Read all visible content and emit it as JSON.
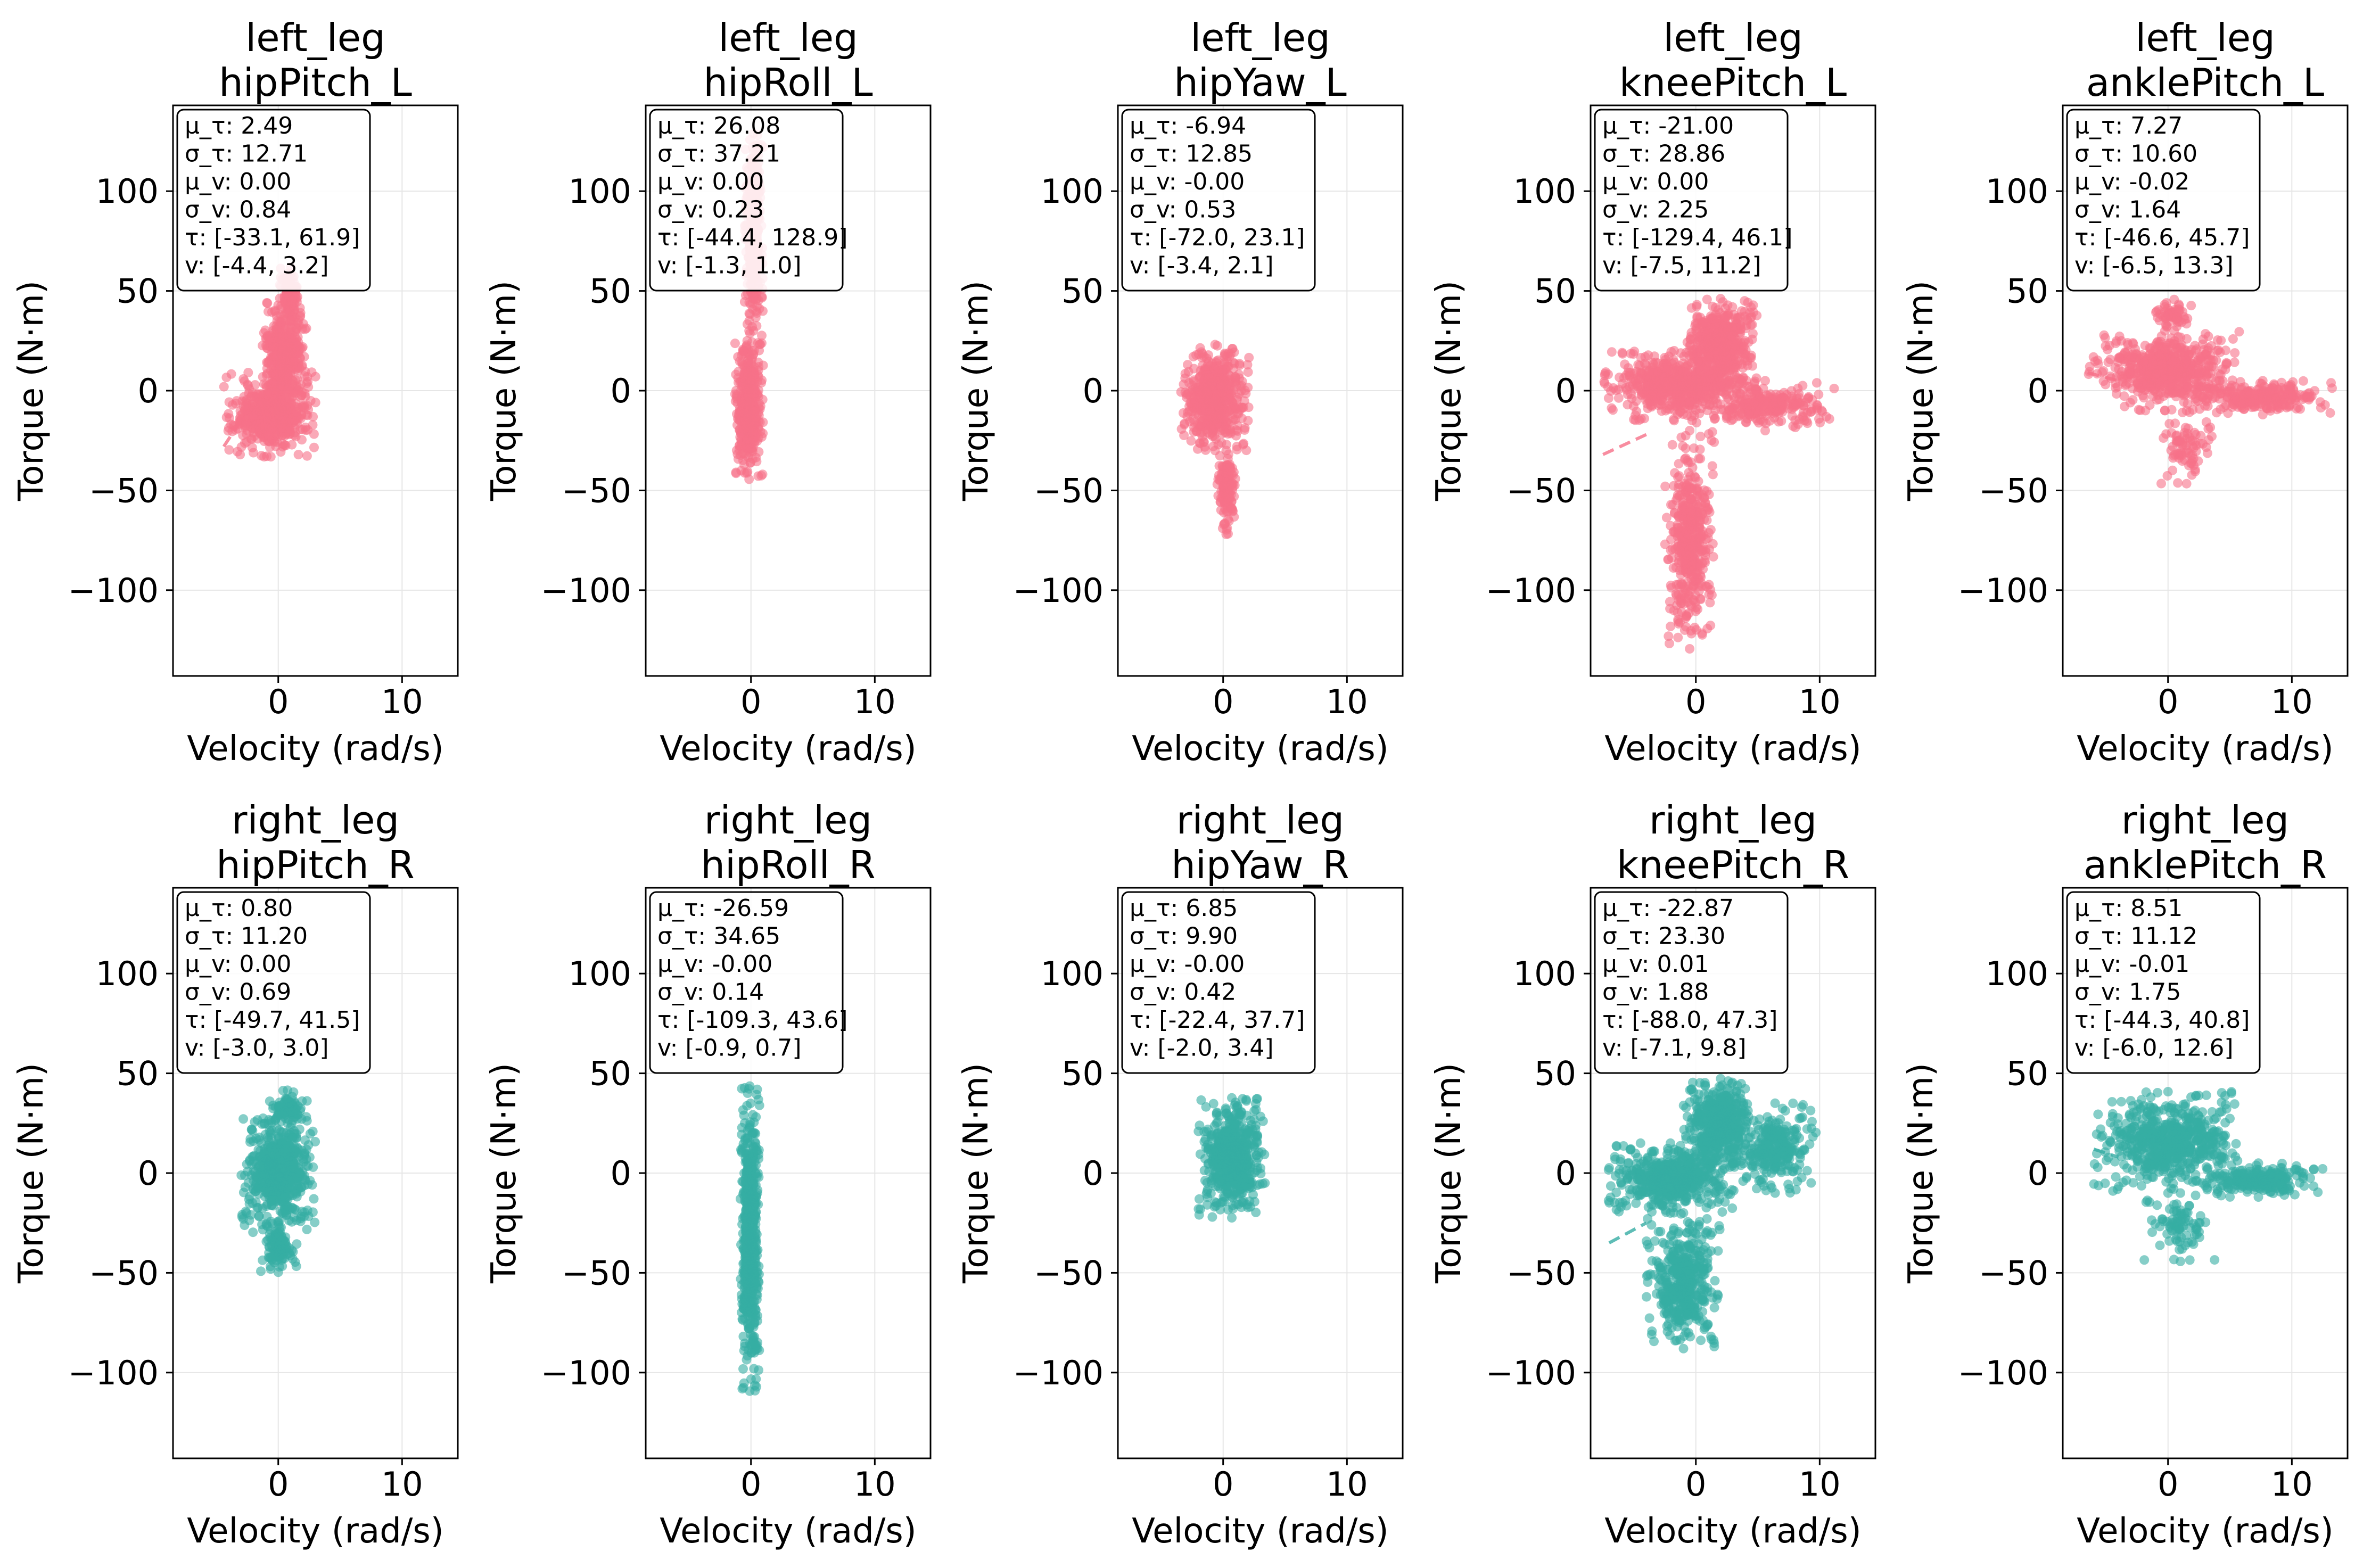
{
  "chart_data": [
    {
      "type": "scatter",
      "group": "left_leg",
      "joint": "hipPitch_L",
      "title": [
        "left_leg",
        "hipPitch_L"
      ],
      "color": "#f77189",
      "xlabel": "Velocity (rad/s)",
      "ylabel": "Torque (N·m)",
      "xlim": [
        -8.5,
        14.5
      ],
      "ylim": [
        -143,
        143
      ],
      "xticks": [
        0,
        10
      ],
      "yticks": [
        -100,
        -50,
        0,
        50,
        100
      ],
      "stats": [
        "μ_τ: 2.49",
        "σ_τ: 12.71",
        "μ_v: 0.00",
        "σ_v: 0.84",
        "τ: [-33.1, 61.9]",
        "v: [-4.4, 3.2]"
      ],
      "cloud": [
        {
          "vx": [
            -4.4,
            3.2
          ],
          "ty": [
            -33.1,
            10
          ],
          "n": 500
        },
        {
          "vx": [
            -1.5,
            2.5
          ],
          "ty": [
            -10,
            45
          ],
          "n": 400
        },
        {
          "vx": [
            0,
            2
          ],
          "ty": [
            30,
            61.9
          ],
          "n": 120
        }
      ],
      "fit": [
        [
          -4.4,
          -28
        ],
        [
          -2.5,
          -10
        ]
      ]
    },
    {
      "type": "scatter",
      "group": "left_leg",
      "joint": "hipRoll_L",
      "title": [
        "left_leg",
        "hipRoll_L"
      ],
      "color": "#f77189",
      "xlabel": "Velocity (rad/s)",
      "ylabel": "Torque (N·m)",
      "xlim": [
        -8.5,
        14.5
      ],
      "ylim": [
        -143,
        143
      ],
      "xticks": [
        0,
        10
      ],
      "yticks": [
        -100,
        -50,
        0,
        50,
        100
      ],
      "stats": [
        "μ_τ: 26.08",
        "σ_τ: 37.21",
        "μ_v: 0.00",
        "σ_v: 0.23",
        "τ: [-44.4, 128.9]",
        "v: [-1.3, 1.0]"
      ],
      "cloud": [
        {
          "vx": [
            -1.3,
            1.0
          ],
          "ty": [
            -44.4,
            30
          ],
          "n": 500
        },
        {
          "vx": [
            -0.6,
            1.0
          ],
          "ty": [
            30,
            128.9
          ],
          "n": 400
        }
      ],
      "fit": []
    },
    {
      "type": "scatter",
      "group": "left_leg",
      "joint": "hipYaw_L",
      "title": [
        "left_leg",
        "hipYaw_L"
      ],
      "color": "#f77189",
      "xlabel": "Velocity (rad/s)",
      "ylabel": "Torque (N·m)",
      "xlim": [
        -8.5,
        14.5
      ],
      "ylim": [
        -143,
        143
      ],
      "xticks": [
        0,
        10
      ],
      "yticks": [
        -100,
        -50,
        0,
        50,
        100
      ],
      "stats": [
        "μ_τ: -6.94",
        "σ_τ: 12.85",
        "μ_v: -0.00",
        "σ_v: 0.53",
        "τ: [-72.0, 23.1]",
        "v: [-3.4, 2.1]"
      ],
      "cloud": [
        {
          "vx": [
            -3.4,
            2.1
          ],
          "ty": [
            -30,
            23.1
          ],
          "n": 600
        },
        {
          "vx": [
            -0.5,
            1.0
          ],
          "ty": [
            -72,
            -30
          ],
          "n": 150
        }
      ],
      "fit": []
    },
    {
      "type": "scatter",
      "group": "left_leg",
      "joint": "kneePitch_L",
      "title": [
        "left_leg",
        "kneePitch_L"
      ],
      "color": "#f77189",
      "xlabel": "Velocity (rad/s)",
      "ylabel": "Torque (N·m)",
      "xlim": [
        -8.5,
        14.5
      ],
      "ylim": [
        -143,
        143
      ],
      "xticks": [
        0,
        10
      ],
      "yticks": [
        -100,
        -50,
        0,
        50,
        100
      ],
      "stats": [
        "μ_τ: -21.00",
        "σ_τ: 28.86",
        "μ_v: 0.00",
        "σ_v: 2.25",
        "τ: [-129.4, 46.1]",
        "v: [-7.5, 11.2]"
      ],
      "cloud": [
        {
          "vx": [
            -7.5,
            4
          ],
          "ty": [
            -15,
            20
          ],
          "n": 600
        },
        {
          "vx": [
            -1,
            5
          ],
          "ty": [
            0,
            46.1
          ],
          "n": 500
        },
        {
          "vx": [
            -2.5,
            1.5
          ],
          "ty": [
            -129.4,
            -20
          ],
          "n": 450
        },
        {
          "vx": [
            0,
            11.2
          ],
          "ty": [
            -20,
            5
          ],
          "n": 250
        }
      ],
      "fit": [
        [
          -7.5,
          -32
        ],
        [
          -4,
          -22
        ]
      ]
    },
    {
      "type": "scatter",
      "group": "left_leg",
      "joint": "anklePitch_L",
      "title": [
        "left_leg",
        "anklePitch_L"
      ],
      "color": "#f77189",
      "xlabel": "Velocity (rad/s)",
      "ylabel": "Torque (N·m)",
      "xlim": [
        -8.5,
        14.5
      ],
      "ylim": [
        -143,
        143
      ],
      "xticks": [
        0,
        10
      ],
      "yticks": [
        -100,
        -50,
        0,
        50,
        100
      ],
      "stats": [
        "μ_τ: 7.27",
        "σ_τ: 10.60",
        "μ_v: -0.02",
        "σ_v: 1.64",
        "τ: [-46.6, 45.7]",
        "v: [-6.5, 13.3]"
      ],
      "cloud": [
        {
          "vx": [
            -6.5,
            6
          ],
          "ty": [
            -10,
            30
          ],
          "n": 600
        },
        {
          "vx": [
            -1,
            4
          ],
          "ty": [
            -46.6,
            -10
          ],
          "n": 80
        },
        {
          "vx": [
            2,
            13.3
          ],
          "ty": [
            -12,
            5
          ],
          "n": 250
        },
        {
          "vx": [
            -1,
            2
          ],
          "ty": [
            30,
            45.7
          ],
          "n": 60
        }
      ],
      "fit": [
        [
          -6.5,
          9
        ],
        [
          -4,
          5
        ]
      ]
    },
    {
      "type": "scatter",
      "group": "right_leg",
      "joint": "hipPitch_R",
      "title": [
        "right_leg",
        "hipPitch_R"
      ],
      "color": "#36ada4",
      "xlabel": "Velocity (rad/s)",
      "ylabel": "Torque (N·m)",
      "xlim": [
        -8.5,
        14.5
      ],
      "ylim": [
        -143,
        143
      ],
      "xticks": [
        0,
        10
      ],
      "yticks": [
        -100,
        -50,
        0,
        50,
        100
      ],
      "stats": [
        "μ_τ: 0.80",
        "σ_τ: 11.20",
        "μ_v: 0.00",
        "σ_v: 0.69",
        "τ: [-49.7, 41.5]",
        "v: [-3.0, 3.0]"
      ],
      "cloud": [
        {
          "vx": [
            -3.0,
            3.0
          ],
          "ty": [
            -30,
            30
          ],
          "n": 600
        },
        {
          "vx": [
            -1.5,
            1.5
          ],
          "ty": [
            -49.7,
            -25
          ],
          "n": 100
        },
        {
          "vx": [
            -1,
            2.5
          ],
          "ty": [
            25,
            41.5
          ],
          "n": 80
        }
      ],
      "fit": []
    },
    {
      "type": "scatter",
      "group": "right_leg",
      "joint": "hipRoll_R",
      "title": [
        "right_leg",
        "hipRoll_R"
      ],
      "color": "#36ada4",
      "xlabel": "Velocity (rad/s)",
      "ylabel": "Torque (N·m)",
      "xlim": [
        -8.5,
        14.5
      ],
      "ylim": [
        -143,
        143
      ],
      "xticks": [
        0,
        10
      ],
      "yticks": [
        -100,
        -50,
        0,
        50,
        100
      ],
      "stats": [
        "μ_τ: -26.59",
        "σ_τ: 34.65",
        "μ_v: -0.00",
        "σ_v: 0.14",
        "τ: [-109.3, 43.6]",
        "v: [-0.9, 0.7]"
      ],
      "cloud": [
        {
          "vx": [
            -0.9,
            0.7
          ],
          "ty": [
            -109.3,
            43.6
          ],
          "n": 700
        }
      ],
      "fit": []
    },
    {
      "type": "scatter",
      "group": "right_leg",
      "joint": "hipYaw_R",
      "title": [
        "right_leg",
        "hipYaw_R"
      ],
      "color": "#36ada4",
      "xlabel": "Velocity (rad/s)",
      "ylabel": "Torque (N·m)",
      "xlim": [
        -8.5,
        14.5
      ],
      "ylim": [
        -143,
        143
      ],
      "xticks": [
        0,
        10
      ],
      "yticks": [
        -100,
        -50,
        0,
        50,
        100
      ],
      "stats": [
        "μ_τ: 6.85",
        "σ_τ: 9.90",
        "μ_v: -0.00",
        "σ_v: 0.42",
        "τ: [-22.4, 37.7]",
        "v: [-2.0, 3.4]"
      ],
      "cloud": [
        {
          "vx": [
            -2.0,
            3.4
          ],
          "ty": [
            -22.4,
            37.7
          ],
          "n": 600
        }
      ],
      "fit": []
    },
    {
      "type": "scatter",
      "group": "right_leg",
      "joint": "kneePitch_R",
      "title": [
        "right_leg",
        "kneePitch_R"
      ],
      "color": "#36ada4",
      "xlabel": "Velocity (rad/s)",
      "ylabel": "Torque (N·m)",
      "xlim": [
        -8.5,
        14.5
      ],
      "ylim": [
        -143,
        143
      ],
      "xticks": [
        0,
        10
      ],
      "yticks": [
        -100,
        -50,
        0,
        50,
        100
      ],
      "stats": [
        "μ_τ: -22.87",
        "σ_τ: 23.30",
        "μ_v: 0.01",
        "σ_v: 1.88",
        "τ: [-88.0, 47.3]",
        "v: [-7.1, 9.8]"
      ],
      "cloud": [
        {
          "vx": [
            -7.1,
            3
          ],
          "ty": [
            -20,
            15
          ],
          "n": 600
        },
        {
          "vx": [
            -1,
            5
          ],
          "ty": [
            0,
            47.3
          ],
          "n": 500
        },
        {
          "vx": [
            -4,
            2
          ],
          "ty": [
            -88,
            -20
          ],
          "n": 450
        },
        {
          "vx": [
            3,
            9.8
          ],
          "ty": [
            -10,
            35
          ],
          "n": 250
        }
      ],
      "fit": [
        [
          -7,
          -35
        ],
        [
          -4,
          -25
        ]
      ]
    },
    {
      "type": "scatter",
      "group": "right_leg",
      "joint": "anklePitch_R",
      "title": [
        "right_leg",
        "anklePitch_R"
      ],
      "color": "#36ada4",
      "xlabel": "Velocity (rad/s)",
      "ylabel": "Torque (N·m)",
      "xlim": [
        -8.5,
        14.5
      ],
      "ylim": [
        -143,
        143
      ],
      "xticks": [
        0,
        10
      ],
      "yticks": [
        -100,
        -50,
        0,
        50,
        100
      ],
      "stats": [
        "μ_τ: 8.51",
        "σ_τ: 11.12",
        "μ_v: -0.01",
        "σ_v: 1.75",
        "τ: [-44.3, 40.8]",
        "v: [-6.0, 12.6]"
      ],
      "cloud": [
        {
          "vx": [
            -6.0,
            6
          ],
          "ty": [
            -10,
            40.8
          ],
          "n": 600
        },
        {
          "vx": [
            -2,
            4
          ],
          "ty": [
            -44.3,
            -10
          ],
          "n": 80
        },
        {
          "vx": [
            2,
            12.6
          ],
          "ty": [
            -12,
            5
          ],
          "n": 250
        }
      ],
      "fit": [
        [
          -6,
          12
        ],
        [
          -4,
          8
        ]
      ]
    }
  ]
}
